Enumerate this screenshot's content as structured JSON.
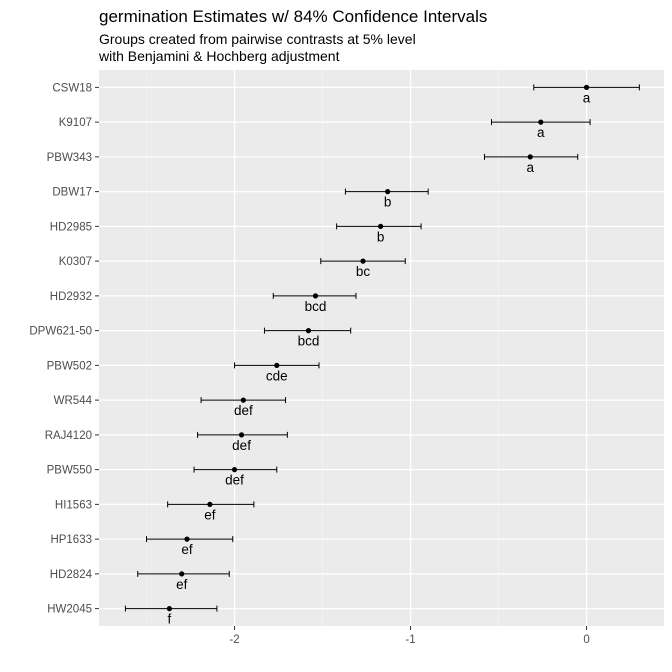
{
  "chart_data": {
    "type": "errorbar",
    "title": "germination Estimates w/ 84% Confidence Intervals",
    "subtitle": [
      "Groups created from pairwise contrasts at 5% level",
      "with Benjamini & Hochberg adjustment"
    ],
    "xlabel": "",
    "ylabel": "",
    "xlim": [
      -2.77,
      0.44
    ],
    "xticks": [
      -2,
      -1,
      0
    ],
    "xtick_labels": [
      "-2",
      "-1",
      "0"
    ],
    "grid": true,
    "categories": [
      "CSW18",
      "K9107",
      "PBW343",
      "DBW17",
      "HD2985",
      "K0307",
      "HD2932",
      "DPW621-50",
      "PBW502",
      "WR544",
      "RAJ4120",
      "PBW550",
      "HI1563",
      "HP1633",
      "HD2824",
      "HW2045"
    ],
    "estimate": [
      0.0,
      -0.26,
      -0.32,
      -1.13,
      -1.17,
      -1.27,
      -1.54,
      -1.58,
      -1.76,
      -1.95,
      -1.96,
      -2.0,
      -2.14,
      -2.27,
      -2.3,
      -2.37
    ],
    "lower": [
      -0.3,
      -0.54,
      -0.58,
      -1.37,
      -1.42,
      -1.51,
      -1.78,
      -1.83,
      -2.0,
      -2.19,
      -2.21,
      -2.23,
      -2.38,
      -2.5,
      -2.55,
      -2.62
    ],
    "upper": [
      0.3,
      0.02,
      -0.05,
      -0.9,
      -0.94,
      -1.03,
      -1.31,
      -1.34,
      -1.52,
      -1.71,
      -1.7,
      -1.76,
      -1.89,
      -2.01,
      -2.03,
      -2.1
    ],
    "groups": [
      "a",
      "a",
      "a",
      "b",
      "b",
      "bc",
      "bcd",
      "bcd",
      "cde",
      "def",
      "def",
      "def",
      "ef",
      "ef",
      "ef",
      "f"
    ],
    "colors": {
      "panel_background": "#ebebeb",
      "grid_major": "#ffffff",
      "grid_minor": "#f5f5f5",
      "point": "#000000",
      "errorbar": "#000000",
      "tick_label": "#4d4d4d"
    }
  }
}
